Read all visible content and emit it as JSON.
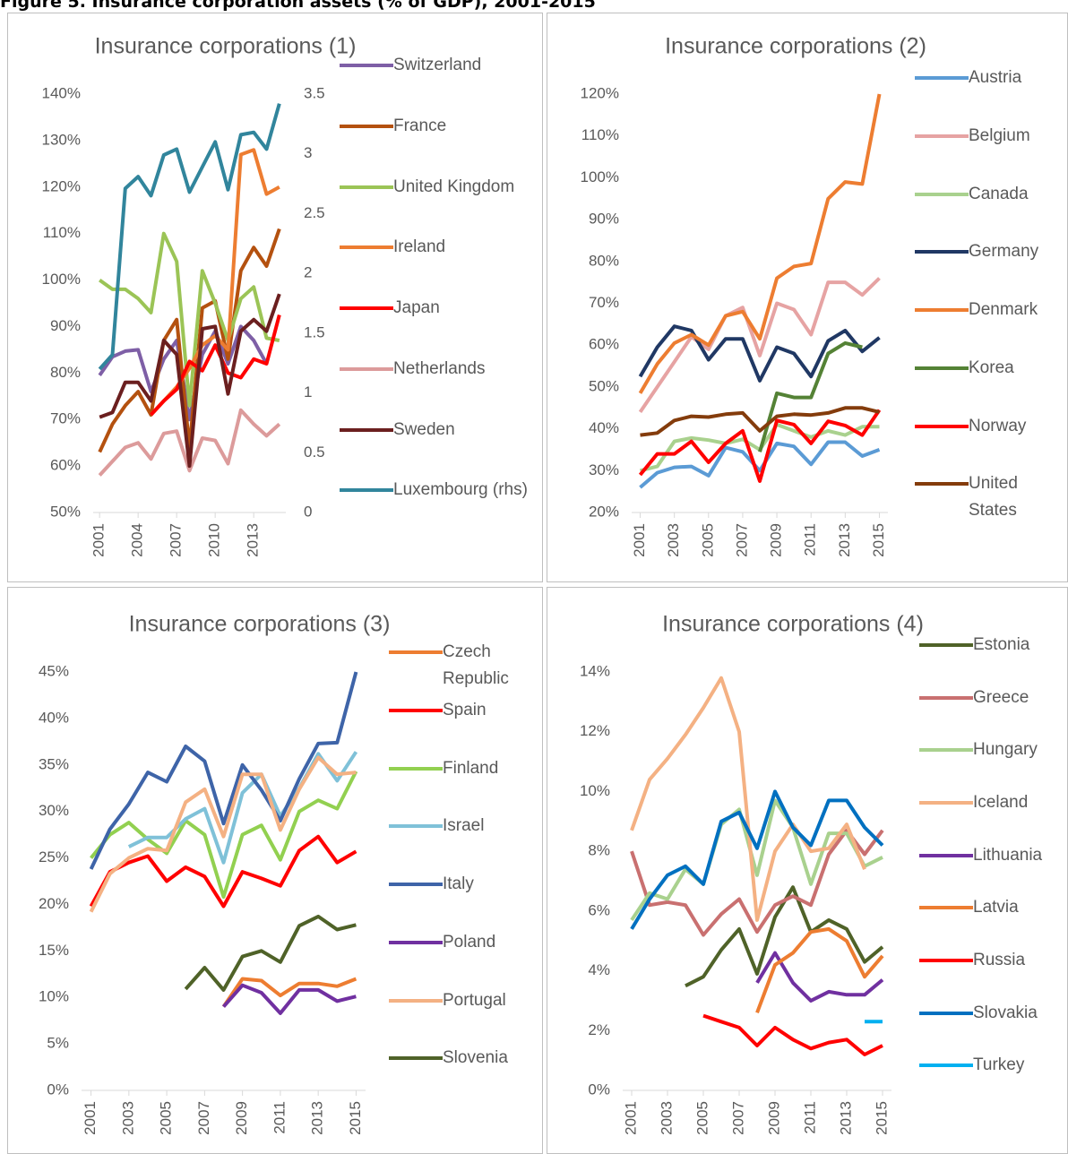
{
  "title": "Figure 5. Insurance corporation assets (% of GDP), 2001-2015",
  "chart_data": [
    {
      "type": "line",
      "title": "Insurance corporations (1)",
      "legend": "right",
      "grid": false,
      "x": [
        2001,
        2002,
        2003,
        2004,
        2005,
        2006,
        2007,
        2008,
        2009,
        2010,
        2011,
        2012,
        2013,
        2014,
        2015
      ],
      "xlim": [
        2000.5,
        2015.5
      ],
      "xticks": [
        2001,
        2004,
        2007,
        2010,
        2013
      ],
      "ylim": [
        50,
        140
      ],
      "yticks": [
        {
          "value": 50,
          "label": "50%"
        },
        {
          "value": 60,
          "label": "60%"
        },
        {
          "value": 70,
          "label": "70%"
        },
        {
          "value": 80,
          "label": "80%"
        },
        {
          "value": 90,
          "label": "90%"
        },
        {
          "value": 100,
          "label": "100%"
        },
        {
          "value": 110,
          "label": "110%"
        },
        {
          "value": 120,
          "label": "120%"
        },
        {
          "value": 130,
          "label": "130%"
        },
        {
          "value": 140,
          "label": "140%"
        }
      ],
      "y2lim": [
        0,
        3.5
      ],
      "y2ticks": [
        0,
        0.5,
        1,
        1.5,
        2,
        2.5,
        3,
        3.5
      ],
      "series": [
        {
          "name": "Switzerland",
          "color": "#7e5fa6",
          "values": [
            79.5,
            83.5,
            84.7,
            85,
            76,
            83,
            87,
            70,
            84,
            89,
            82,
            90,
            87,
            82,
            null
          ]
        },
        {
          "name": "France",
          "color": "#b4510f",
          "values": [
            63,
            69,
            73,
            76,
            71,
            87,
            91.5,
            64,
            94,
            95.5,
            83,
            102,
            107,
            103,
            111
          ]
        },
        {
          "name": "United Kingdom",
          "color": "#9bc456",
          "values": [
            100,
            98,
            98,
            96,
            93,
            110,
            104,
            73,
            102,
            95,
            87,
            96,
            98.5,
            87.5,
            87
          ]
        },
        {
          "name": "Ireland",
          "color": "#ed7d31",
          "values": [
            null,
            null,
            null,
            null,
            71,
            74,
            77,
            81,
            86,
            88,
            85,
            127,
            128,
            118.5,
            120
          ]
        },
        {
          "name": "Japan",
          "color": "#ff0000",
          "values": [
            null,
            null,
            null,
            null,
            71,
            74,
            76.5,
            82.5,
            80.5,
            86,
            80,
            79,
            83,
            82,
            92.5
          ]
        },
        {
          "name": "Netherlands",
          "color": "#dc9b9b",
          "values": [
            58,
            61,
            64,
            65,
            61.5,
            67,
            67.5,
            59,
            66,
            65.5,
            60.5,
            72,
            69,
            66.5,
            69
          ]
        },
        {
          "name": "Sweden",
          "color": "#6b1f1f",
          "values": [
            70.5,
            71.5,
            78,
            78,
            74,
            87,
            84,
            60,
            89.5,
            90,
            75.5,
            89,
            91.5,
            89,
            97
          ]
        },
        {
          "name": "Luxembourg (rhs)",
          "color": "#31859c",
          "axis": "y2",
          "values": [
            1.2,
            1.32,
            2.71,
            2.81,
            2.65,
            2.99,
            3.04,
            2.68,
            2.89,
            3.1,
            2.7,
            3.16,
            3.18,
            3.04,
            3.42
          ]
        }
      ]
    },
    {
      "type": "line",
      "title": "Insurance corporations (2)",
      "legend": "right",
      "grid": false,
      "x": [
        2001,
        2002,
        2003,
        2004,
        2005,
        2006,
        2007,
        2008,
        2009,
        2010,
        2011,
        2012,
        2013,
        2014,
        2015
      ],
      "xlim": [
        2000.5,
        2015.5
      ],
      "xticks": [
        2001,
        2003,
        2005,
        2007,
        2009,
        2011,
        2013,
        2015
      ],
      "ylim": [
        20,
        120
      ],
      "yticks": [
        {
          "value": 20,
          "label": "20%"
        },
        {
          "value": 30,
          "label": "30%"
        },
        {
          "value": 40,
          "label": "40%"
        },
        {
          "value": 50,
          "label": "50%"
        },
        {
          "value": 60,
          "label": "60%"
        },
        {
          "value": 70,
          "label": "70%"
        },
        {
          "value": 80,
          "label": "80%"
        },
        {
          "value": 90,
          "label": "90%"
        },
        {
          "value": 100,
          "label": "100%"
        },
        {
          "value": 110,
          "label": "110%"
        },
        {
          "value": 120,
          "label": "120%"
        }
      ],
      "series": [
        {
          "name": "Austria",
          "color": "#5b9bd5",
          "values": [
            26,
            29.5,
            30.8,
            31,
            28.8,
            35.5,
            34.5,
            30,
            36.5,
            35.8,
            31.5,
            36.8,
            36.8,
            33.5,
            35
          ]
        },
        {
          "name": "Belgium",
          "color": "#e6a3a3",
          "values": [
            44,
            50,
            56,
            62,
            59,
            67,
            69,
            57.5,
            70,
            68.5,
            62.5,
            75,
            75,
            72,
            76
          ]
        },
        {
          "name": "Canada",
          "color": "#a9d18e",
          "values": [
            30,
            31,
            37,
            37.8,
            37.3,
            36.5,
            37.5,
            35,
            41,
            39.5,
            38,
            39.5,
            38.5,
            40.5,
            40.5
          ]
        },
        {
          "name": "Germany",
          "color": "#203864",
          "values": [
            52.5,
            59.5,
            64.5,
            63.5,
            56.5,
            61.5,
            61.5,
            51.5,
            59.5,
            58,
            52.5,
            61,
            63.5,
            58.5,
            61.8
          ]
        },
        {
          "name": "Denmark",
          "color": "#ed7d31",
          "values": [
            48.5,
            55.5,
            60.5,
            62.5,
            60,
            67,
            68,
            61.5,
            76,
            78.8,
            79.5,
            95,
            99,
            98.5,
            120
          ]
        },
        {
          "name": "Korea",
          "color": "#548235",
          "values": [
            null,
            null,
            null,
            null,
            null,
            null,
            null,
            34.5,
            48.5,
            47.5,
            47.5,
            58,
            60.5,
            59.5,
            null
          ]
        },
        {
          "name": "Norway",
          "color": "#ff0000",
          "values": [
            29,
            34,
            34,
            37,
            32,
            36.5,
            39.5,
            27.5,
            42,
            41,
            36.5,
            41.8,
            40.8,
            38.5,
            44.5
          ]
        },
        {
          "name": "United States",
          "color": "#843c0c",
          "values": [
            38.5,
            39,
            42,
            43,
            42.8,
            43.5,
            43.8,
            39.5,
            43,
            43.5,
            43.3,
            43.8,
            45,
            45,
            44
          ]
        }
      ]
    },
    {
      "type": "line",
      "title": "Insurance corporations (3)",
      "legend": "right",
      "grid": false,
      "x": [
        2001,
        2002,
        2003,
        2004,
        2005,
        2006,
        2007,
        2008,
        2009,
        2010,
        2011,
        2012,
        2013,
        2014,
        2015
      ],
      "xlim": [
        2000.5,
        2015.5
      ],
      "xticks": [
        2001,
        2003,
        2005,
        2007,
        2009,
        2011,
        2013,
        2015
      ],
      "ylim": [
        0,
        45
      ],
      "yticks": [
        {
          "value": 0,
          "label": "0%"
        },
        {
          "value": 5,
          "label": "5%"
        },
        {
          "value": 10,
          "label": "10%"
        },
        {
          "value": 15,
          "label": "15%"
        },
        {
          "value": 20,
          "label": "20%"
        },
        {
          "value": 25,
          "label": "25%"
        },
        {
          "value": 30,
          "label": "30%"
        },
        {
          "value": 35,
          "label": "35%"
        },
        {
          "value": 40,
          "label": "40%"
        },
        {
          "value": 45,
          "label": "45%"
        }
      ],
      "series": [
        {
          "name": "Czech Republic",
          "color": "#ed7d31",
          "values": [
            null,
            null,
            null,
            null,
            null,
            null,
            null,
            9,
            12,
            11.8,
            10.2,
            11.5,
            11.5,
            11.2,
            12
          ]
        },
        {
          "name": "Spain",
          "color": "#ff0000",
          "values": [
            19.8,
            23.5,
            24.5,
            25.2,
            22.5,
            24,
            23,
            19.8,
            23.5,
            22.8,
            22,
            25.8,
            27.3,
            24.5,
            25.7
          ]
        },
        {
          "name": "Finland",
          "color": "#92d050",
          "values": [
            25,
            27.5,
            28.8,
            27,
            25.5,
            29,
            27.5,
            20.8,
            27.5,
            28.5,
            24.8,
            30,
            31.2,
            30.3,
            34.3
          ]
        },
        {
          "name": "Israel",
          "color": "#7fc1d8",
          "values": [
            null,
            null,
            26.2,
            27.2,
            27.2,
            29.2,
            30.3,
            24.5,
            32,
            34,
            29.5,
            32.5,
            36.2,
            33.3,
            36.4
          ]
        },
        {
          "name": "Italy",
          "color": "#3e64a8",
          "values": [
            23.8,
            28.1,
            30.8,
            34.2,
            33.2,
            37,
            35.4,
            28.7,
            35,
            32.3,
            29,
            33.5,
            37.3,
            37.4,
            45
          ]
        },
        {
          "name": "Poland",
          "color": "#7030a0",
          "values": [
            null,
            null,
            null,
            null,
            null,
            null,
            null,
            9,
            11.3,
            10.5,
            8.3,
            10.8,
            10.8,
            9.6,
            10.1
          ]
        },
        {
          "name": "Portugal",
          "color": "#f4b183",
          "values": [
            19.2,
            23.3,
            25,
            26,
            25.8,
            31,
            32.4,
            27.3,
            34,
            34,
            28,
            32.4,
            35.8,
            34,
            34.2
          ]
        },
        {
          "name": "Slovenia",
          "color": "#4f6228",
          "values": [
            null,
            null,
            null,
            null,
            null,
            10.9,
            13.2,
            10.8,
            14.4,
            15,
            13.8,
            17.7,
            18.7,
            17.3,
            17.8
          ]
        }
      ]
    },
    {
      "type": "line",
      "title": "Insurance corporations (4)",
      "legend": "right",
      "grid": false,
      "x": [
        2001,
        2002,
        2003,
        2004,
        2005,
        2006,
        2007,
        2008,
        2009,
        2010,
        2011,
        2012,
        2013,
        2014,
        2015
      ],
      "xlim": [
        2000.5,
        2015.5
      ],
      "xticks": [
        2001,
        2003,
        2005,
        2007,
        2009,
        2011,
        2013,
        2015
      ],
      "ylim": [
        0,
        14
      ],
      "yticks": [
        {
          "value": 0,
          "label": "0%"
        },
        {
          "value": 2,
          "label": "2%"
        },
        {
          "value": 4,
          "label": "4%"
        },
        {
          "value": 6,
          "label": "6%"
        },
        {
          "value": 8,
          "label": "8%"
        },
        {
          "value": 10,
          "label": "10%"
        },
        {
          "value": 12,
          "label": "12%"
        },
        {
          "value": 14,
          "label": "14%"
        }
      ],
      "series": [
        {
          "name": "Estonia",
          "color": "#4f6228",
          "values": [
            null,
            null,
            null,
            3.5,
            3.8,
            4.7,
            5.4,
            3.9,
            5.8,
            6.8,
            5.3,
            5.7,
            5.4,
            4.3,
            4.8
          ]
        },
        {
          "name": "Greece",
          "color": "#c97070",
          "values": [
            8,
            6.2,
            6.3,
            6.2,
            5.2,
            5.9,
            6.4,
            5.3,
            6.2,
            6.5,
            6.2,
            7.9,
            8.7,
            7.9,
            8.7
          ]
        },
        {
          "name": "Hungary",
          "color": "#a9d18e",
          "values": [
            5.7,
            6.6,
            6.4,
            7.4,
            6.9,
            8.9,
            9.4,
            7.2,
            9.7,
            8.8,
            6.9,
            8.6,
            8.6,
            7.5,
            7.8
          ]
        },
        {
          "name": "Iceland",
          "color": "#f4b183",
          "values": [
            8.7,
            10.4,
            11.1,
            11.9,
            12.8,
            13.8,
            12,
            5.7,
            8,
            8.9,
            8,
            8.1,
            8.9,
            7.4,
            null
          ]
        },
        {
          "name": "Lithuania",
          "color": "#7030a0",
          "values": [
            null,
            null,
            null,
            null,
            null,
            null,
            null,
            3.6,
            4.6,
            3.6,
            3,
            3.3,
            3.2,
            3.2,
            3.7
          ]
        },
        {
          "name": "Latvia",
          "color": "#ed7d31",
          "values": [
            null,
            null,
            null,
            null,
            null,
            null,
            null,
            2.6,
            4.2,
            4.6,
            5.3,
            5.4,
            5,
            3.8,
            4.5
          ]
        },
        {
          "name": "Russia",
          "color": "#ff0000",
          "values": [
            null,
            null,
            null,
            null,
            2.5,
            2.3,
            2.1,
            1.5,
            2.1,
            1.7,
            1.4,
            1.6,
            1.7,
            1.2,
            1.5
          ]
        },
        {
          "name": "Slovakia",
          "color": "#0070c0",
          "values": [
            5.4,
            6.4,
            7.2,
            7.5,
            6.9,
            9,
            9.3,
            8.1,
            10,
            8.8,
            8.2,
            9.7,
            9.7,
            8.8,
            8.2
          ]
        },
        {
          "name": "Turkey",
          "color": "#00b0f0",
          "values": [
            null,
            null,
            null,
            null,
            null,
            null,
            null,
            null,
            null,
            null,
            null,
            null,
            null,
            2.3,
            2.3
          ]
        }
      ]
    }
  ]
}
